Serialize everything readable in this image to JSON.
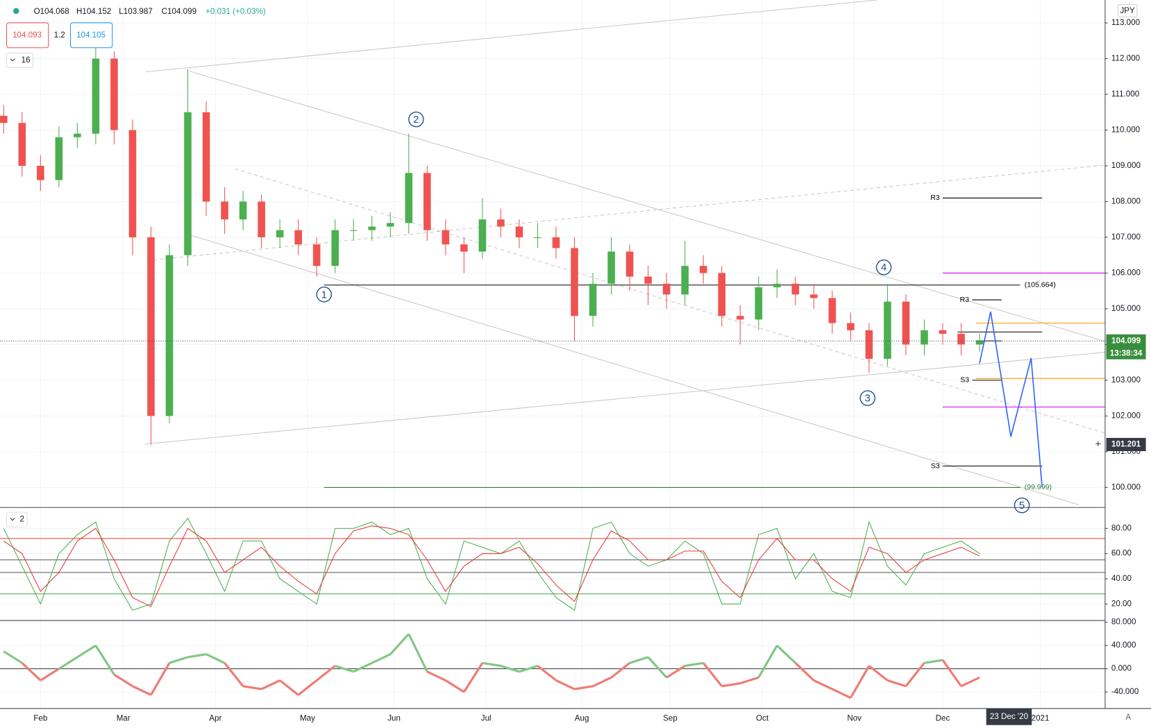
{
  "header": {
    "ohlc": [
      "O104.068",
      "H104.152",
      "L103.987",
      "C104.099",
      "+0.031 (+0.03%)"
    ],
    "sell_price": "104.093",
    "spread": "1.2",
    "buy_price": "104.105",
    "indicator_count": "16",
    "currency": "JPY",
    "countdown": "13:38:34",
    "date_label": "23 Dec '20",
    "scale_mode": "A"
  },
  "chart_data": [
    {
      "type": "candlestick",
      "up_color": "#4caf50",
      "down_color": "#ef5350",
      "x": [
        1,
        6,
        11,
        16,
        21,
        26,
        31,
        36,
        41,
        46,
        51,
        56,
        61,
        66,
        71,
        76,
        81,
        86,
        91,
        96,
        101,
        106,
        111,
        116,
        121,
        126,
        131,
        136,
        141,
        146,
        151,
        156,
        161,
        166,
        171,
        176,
        181,
        186,
        191,
        196,
        201,
        206,
        211,
        216,
        221,
        226,
        231,
        236,
        241,
        246,
        251,
        256,
        261,
        266
      ],
      "open": [
        110.4,
        110.2,
        109.0,
        108.6,
        109.8,
        109.9,
        112.0,
        110.0,
        107.0,
        102.0,
        106.5,
        110.5,
        108.0,
        107.5,
        108.0,
        107.0,
        107.2,
        106.8,
        106.2,
        107.2,
        107.2,
        107.3,
        107.4,
        108.8,
        107.2,
        106.8,
        106.6,
        107.5,
        107.3,
        107.0,
        107.0,
        106.7,
        104.8,
        105.7,
        106.6,
        105.9,
        105.7,
        105.4,
        106.2,
        106.0,
        104.8,
        104.7,
        105.6,
        105.7,
        105.4,
        105.3,
        104.6,
        104.4,
        103.6,
        105.2,
        104.0,
        104.4,
        104.3,
        104.0
      ],
      "high": [
        110.7,
        110.5,
        109.3,
        110.1,
        110.2,
        112.3,
        112.2,
        110.3,
        107.3,
        106.8,
        111.7,
        110.8,
        108.4,
        108.3,
        108.2,
        107.5,
        107.5,
        107.0,
        107.5,
        107.5,
        107.6,
        107.7,
        109.9,
        109.0,
        107.5,
        107.0,
        108.1,
        107.8,
        107.5,
        107.4,
        107.3,
        107.0,
        106.0,
        107.0,
        106.8,
        106.2,
        106.0,
        106.9,
        106.5,
        106.2,
        105.1,
        105.9,
        106.1,
        105.9,
        105.7,
        105.5,
        104.9,
        104.6,
        105.7,
        105.4,
        104.7,
        104.6,
        104.6,
        104.3
      ],
      "low": [
        109.9,
        108.7,
        108.3,
        108.4,
        109.5,
        109.6,
        109.6,
        106.5,
        101.2,
        101.8,
        106.2,
        107.6,
        107.1,
        107.2,
        106.7,
        106.7,
        106.5,
        105.9,
        106.0,
        106.9,
        106.9,
        107.0,
        107.1,
        106.9,
        106.5,
        106.0,
        106.4,
        107.0,
        106.7,
        106.7,
        106.4,
        104.1,
        104.5,
        105.4,
        105.5,
        105.1,
        105.0,
        105.1,
        105.7,
        104.5,
        104.0,
        104.4,
        105.3,
        105.1,
        105.0,
        104.3,
        104.1,
        103.2,
        103.4,
        103.7,
        103.7,
        104.0,
        103.7,
        103.8
      ],
      "close": [
        110.2,
        109.0,
        108.6,
        109.8,
        109.9,
        112.0,
        110.0,
        107.0,
        102.0,
        106.5,
        110.5,
        108.0,
        107.5,
        108.0,
        107.0,
        107.2,
        106.8,
        106.2,
        107.2,
        107.2,
        107.3,
        107.4,
        108.8,
        107.2,
        106.8,
        106.6,
        107.5,
        107.3,
        107.0,
        107.0,
        106.7,
        104.8,
        105.7,
        106.6,
        105.9,
        105.7,
        105.4,
        106.2,
        106.0,
        104.8,
        104.7,
        105.6,
        105.7,
        105.4,
        105.3,
        104.6,
        104.4,
        103.6,
        105.2,
        104.0,
        104.4,
        104.3,
        104.0,
        104.099
      ],
      "xlim": [
        0,
        300
      ],
      "ylim": [
        99.45,
        113.64
      ],
      "xticks": [
        {
          "value": 11,
          "label": "Feb"
        },
        {
          "value": 33.5,
          "label": "Mar"
        },
        {
          "value": 58.5,
          "label": "Apr"
        },
        {
          "value": 83.5,
          "label": "May"
        },
        {
          "value": 107,
          "label": "Jun"
        },
        {
          "value": 132,
          "label": "Jul"
        },
        {
          "value": 158,
          "label": "Aug"
        },
        {
          "value": 182,
          "label": "Sep"
        },
        {
          "value": 207,
          "label": "Oct"
        },
        {
          "value": 232,
          "label": "Nov"
        },
        {
          "value": 256,
          "label": "Dec"
        },
        {
          "value": 282.5,
          "label": "2021"
        }
      ],
      "yticks": [
        {
          "value": 100,
          "label": "100.000"
        },
        {
          "value": 101,
          "label": "101.000"
        },
        {
          "value": 102,
          "label": "102.000"
        },
        {
          "value": 103,
          "label": "103.000"
        },
        {
          "value": 104,
          "label": "104.000"
        },
        {
          "value": 105,
          "label": "105.000"
        },
        {
          "value": 106,
          "label": "106.000"
        },
        {
          "value": 107,
          "label": "107.000"
        },
        {
          "value": 108,
          "label": "108.000"
        },
        {
          "value": 109,
          "label": "109.000"
        },
        {
          "value": 110,
          "label": "110.000"
        },
        {
          "value": 111,
          "label": "111.000"
        },
        {
          "value": 112,
          "label": "112.000"
        },
        {
          "value": 113,
          "label": "113.000"
        }
      ],
      "grid": true,
      "last_price": 104.099,
      "last_color": "#388e3c",
      "crosshair_price": 101.201,
      "crosshair_x": 274,
      "levels": [
        {
          "value": 105.664,
          "label": "(105.664)",
          "color": "#000000",
          "x": [
            88,
            277
          ]
        },
        {
          "value": 99.999,
          "label": "(99.999)",
          "color": "#2e7d32",
          "x": [
            88,
            277
          ]
        },
        {
          "value": 108.1,
          "label": "R3",
          "color": "#000000",
          "x": [
            256,
            283
          ]
        },
        {
          "value": 105.25,
          "label": "R3",
          "color": "#000000",
          "x": [
            264,
            272
          ]
        },
        {
          "value": 103.0,
          "label": "S3",
          "color": "#000000",
          "x": [
            264,
            272
          ]
        },
        {
          "value": 100.6,
          "label": "S3",
          "color": "#000000",
          "x": [
            256,
            283
          ]
        },
        {
          "value": 104.35,
          "color": "#000000",
          "x": [
            260,
            283
          ]
        },
        {
          "value": 104.1,
          "color": "#000000",
          "x": [
            265,
            272
          ]
        },
        {
          "value": 106.0,
          "color": "#d500f9",
          "x": [
            256,
            300
          ]
        },
        {
          "value": 102.25,
          "color": "#d500f9",
          "x": [
            256,
            300
          ]
        },
        {
          "value": 104.6,
          "color": "#ff9800",
          "x": [
            265,
            300
          ]
        },
        {
          "value": 103.05,
          "color": "#ff9800",
          "x": [
            265,
            300
          ]
        }
      ],
      "annotations": [
        {
          "label": "1",
          "x": 88,
          "y": 105.4
        },
        {
          "label": "2",
          "x": 113,
          "y": 110.3
        },
        {
          "label": "3",
          "x": 235.6,
          "y": 102.5
        },
        {
          "label": "4",
          "x": 240,
          "y": 106.16
        },
        {
          "label": "5",
          "x": 277.5,
          "y": 99.5
        }
      ],
      "forecast": {
        "color": "#2962ff",
        "x": [
          266,
          269,
          274.5,
          280,
          283
        ],
        "values": [
          103.47,
          104.92,
          101.42,
          103.62,
          100.0
        ]
      }
    },
    {
      "type": "line",
      "title": "2",
      "xlim": [
        0,
        300
      ],
      "ylim": [
        7.2,
        96.3
      ],
      "yticks": [
        {
          "value": 20,
          "label": "20.00"
        },
        {
          "value": 40,
          "label": "40.00"
        },
        {
          "value": 60,
          "label": "60.00"
        },
        {
          "value": 80,
          "label": "80.00"
        }
      ],
      "levels": [
        {
          "value": 72,
          "color": "#e53935"
        },
        {
          "value": 55,
          "color": "#555555"
        },
        {
          "value": 45,
          "color": "#555555"
        },
        {
          "value": 28,
          "color": "#43a047"
        }
      ],
      "x": [
        1,
        6,
        11,
        16,
        21,
        26,
        31,
        36,
        41,
        46,
        51,
        56,
        61,
        66,
        71,
        76,
        81,
        86,
        91,
        96,
        101,
        106,
        111,
        116,
        121,
        126,
        131,
        136,
        141,
        146,
        151,
        156,
        161,
        166,
        171,
        176,
        181,
        186,
        191,
        196,
        201,
        206,
        211,
        216,
        221,
        226,
        231,
        236,
        241,
        246,
        251,
        256,
        261,
        266
      ],
      "series": [
        {
          "color": "#4caf50",
          "values": [
            80,
            50,
            20,
            60,
            75,
            85,
            40,
            15,
            20,
            70,
            88,
            60,
            30,
            70,
            70,
            40,
            30,
            20,
            80,
            80,
            85,
            75,
            80,
            40,
            20,
            70,
            65,
            60,
            70,
            45,
            25,
            15,
            80,
            85,
            60,
            50,
            55,
            70,
            60,
            20,
            20,
            75,
            80,
            40,
            60,
            30,
            25,
            85,
            50,
            35,
            60,
            65,
            70,
            60
          ]
        },
        {
          "color": "#e53935",
          "values": [
            70,
            60,
            30,
            45,
            70,
            80,
            55,
            25,
            18,
            50,
            80,
            70,
            45,
            55,
            65,
            50,
            38,
            28,
            60,
            78,
            82,
            80,
            75,
            55,
            30,
            50,
            60,
            60,
            65,
            52,
            35,
            22,
            55,
            78,
            70,
            55,
            55,
            62,
            62,
            38,
            25,
            55,
            72,
            55,
            55,
            40,
            30,
            65,
            60,
            45,
            55,
            60,
            65,
            58
          ]
        }
      ]
    },
    {
      "type": "line",
      "xlim": [
        0,
        300
      ],
      "ylim": [
        -67.8,
        82.5
      ],
      "yticks": [
        {
          "value": -40,
          "label": "-40.000"
        },
        {
          "value": 0,
          "label": "0.000"
        },
        {
          "value": 40,
          "label": "40.000"
        },
        {
          "value": 80,
          "label": "80.000"
        }
      ],
      "levels": [
        {
          "value": 0,
          "color": "#333333"
        }
      ],
      "x": [
        1,
        6,
        11,
        16,
        21,
        26,
        31,
        36,
        41,
        46,
        51,
        56,
        61,
        66,
        71,
        76,
        81,
        86,
        91,
        96,
        101,
        106,
        111,
        116,
        121,
        126,
        131,
        136,
        141,
        146,
        151,
        156,
        161,
        166,
        171,
        176,
        181,
        186,
        191,
        196,
        201,
        206,
        211,
        216,
        221,
        226,
        231,
        236,
        241,
        246,
        251,
        256,
        261,
        266
      ],
      "series": [
        {
          "color": "#81c784",
          "negative_color": "#ef7b73",
          "values": [
            30,
            10,
            -20,
            0,
            20,
            40,
            -10,
            -30,
            -45,
            10,
            20,
            25,
            10,
            -30,
            -35,
            -20,
            -45,
            -20,
            5,
            -5,
            10,
            25,
            60,
            -5,
            -20,
            -40,
            10,
            5,
            -5,
            5,
            -20,
            -35,
            -30,
            -15,
            10,
            20,
            -15,
            5,
            10,
            -30,
            -25,
            -15,
            40,
            10,
            -20,
            -35,
            -50,
            5,
            -20,
            -30,
            10,
            15,
            -30,
            -15
          ]
        }
      ]
    }
  ]
}
